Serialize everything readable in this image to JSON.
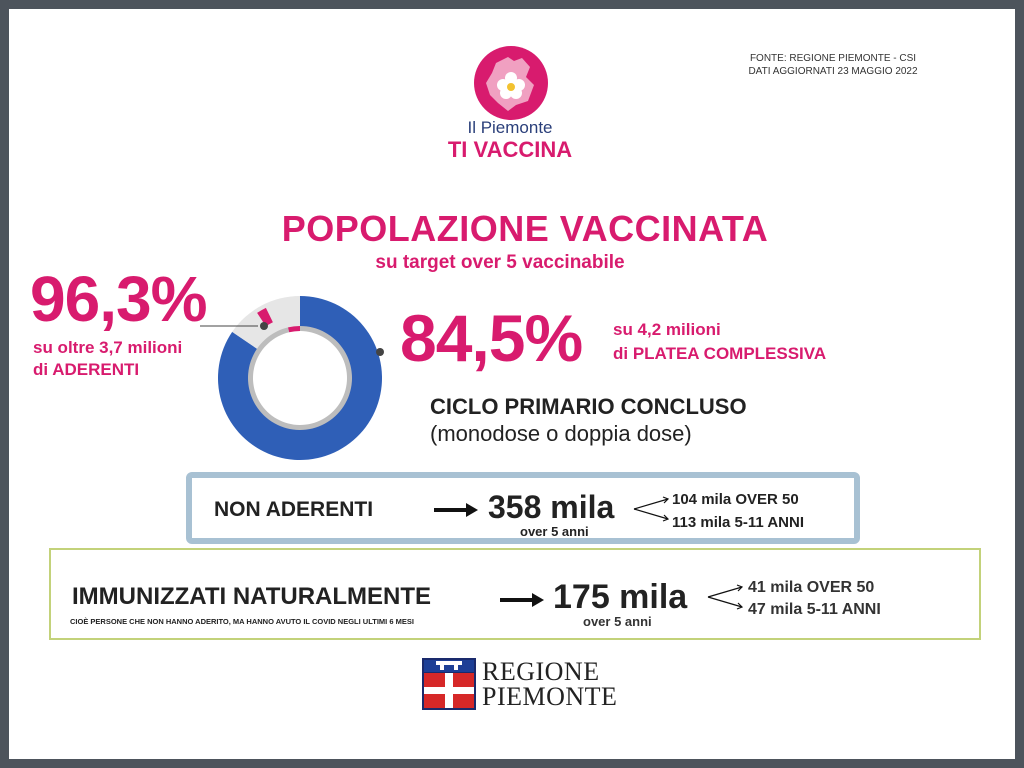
{
  "source": {
    "line1": "FONTE: REGIONE PIEMONTE - CSI",
    "line2": "DATI AGGIORNATI 23 MAGGIO 2022"
  },
  "logo": {
    "text1": "Il Piemonte",
    "text2": "TI VACCINA",
    "icon": "piemonte-flower-logo"
  },
  "heading": {
    "title": "POPOLAZIONE VACCINATA",
    "subtitle": "su target over 5 vaccinabile"
  },
  "left_stat": {
    "value": "96,3%",
    "line1": "su oltre 3,7 milioni",
    "line2": "di ADERENTI"
  },
  "right_stat": {
    "value": "84,5%",
    "line1": "su 4,2 milioni",
    "line2": "di PLATEA COMPLESSIVA",
    "ciclo_title": "CICLO PRIMARIO CONCLUSO",
    "ciclo_sub": "(monodose o doppia dose)"
  },
  "non_aderenti": {
    "label": "NON ADERENTI",
    "value": "358 mila",
    "note": "over 5 anni",
    "breakdown1": "104 mila OVER 50",
    "breakdown2": "113 mila 5-11 ANNI"
  },
  "immunizzati": {
    "label": "IMMUNIZZATI NATURALMENTE",
    "note": "CIOÈ PERSONE CHE NON HANNO ADERITO, MA HANNO AVUTO IL COVID NEGLI ULTIMI 6 MESI",
    "value": "175 mila",
    "sub": "over 5 anni",
    "breakdown1": "41 mila OVER 50",
    "breakdown2": "47 mila 5-11 ANNI"
  },
  "footer": {
    "line1": "REGIONE",
    "line2": "PIEMONTE",
    "icon": "regione-piemonte-coat-of-arms"
  },
  "colors": {
    "accent": "#d81b6e",
    "donut_main": "#2f5fb7",
    "donut_rest": "#e6e6e6",
    "box1_border": "#a8c1d3",
    "box2_border": "#c3d27a"
  },
  "chart_data": {
    "type": "pie",
    "donut": true,
    "series": [
      {
        "values": [
          84.5,
          15.5
        ]
      },
      {
        "values": [
          96.3,
          3.7
        ]
      }
    ]
  }
}
